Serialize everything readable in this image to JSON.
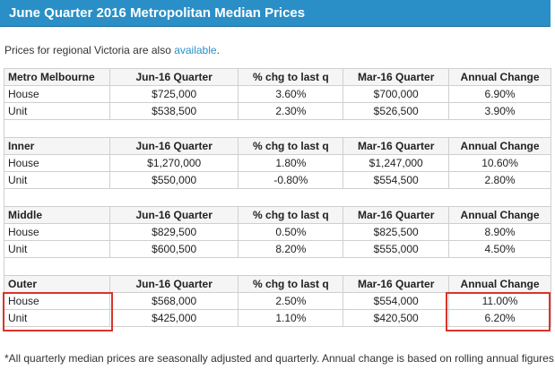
{
  "banner": {
    "title": "June Quarter 2016 Metropolitan Median Prices"
  },
  "intro": {
    "text": "Prices for regional Victoria are also ",
    "link": "available",
    "end": "."
  },
  "columns": [
    "Jun-16 Quarter",
    "% chg to last q",
    "Mar-16 Quarter",
    "Annual Change"
  ],
  "sections": [
    {
      "name": "Metro Melbourne",
      "rows": [
        {
          "label": "House",
          "jun": "$725,000",
          "chg": "3.60%",
          "mar": "$700,000",
          "annual": "6.90%"
        },
        {
          "label": "Unit",
          "jun": "$538,500",
          "chg": "2.30%",
          "mar": "$526,500",
          "annual": "3.90%"
        }
      ]
    },
    {
      "name": "Inner",
      "rows": [
        {
          "label": "House",
          "jun": "$1,270,000",
          "chg": "1.80%",
          "mar": "$1,247,000",
          "annual": "10.60%"
        },
        {
          "label": "Unit",
          "jun": "$550,000",
          "chg": "-0.80%",
          "mar": "$554,500",
          "annual": "2.80%"
        }
      ]
    },
    {
      "name": "Middle",
      "rows": [
        {
          "label": "House",
          "jun": "$829,500",
          "chg": "0.50%",
          "mar": "$825,500",
          "annual": "8.90%"
        },
        {
          "label": "Unit",
          "jun": "$600,500",
          "chg": "8.20%",
          "mar": "$555,000",
          "annual": "4.50%"
        }
      ]
    },
    {
      "name": "Outer",
      "rows": [
        {
          "label": "House",
          "jun": "$568,000",
          "chg": "2.50%",
          "mar": "$554,000",
          "annual": "11.00%"
        },
        {
          "label": "Unit",
          "jun": "$425,000",
          "chg": "1.10%",
          "mar": "$420,500",
          "annual": "6.20%"
        }
      ]
    }
  ],
  "footnote": "*All quarterly median prices are seasonally adjusted and quarterly. Annual change is based on rolling annual figures.",
  "colors": {
    "banner": "#2a8fc7",
    "highlight": "#d9342b",
    "link": "#2a8fc7"
  }
}
